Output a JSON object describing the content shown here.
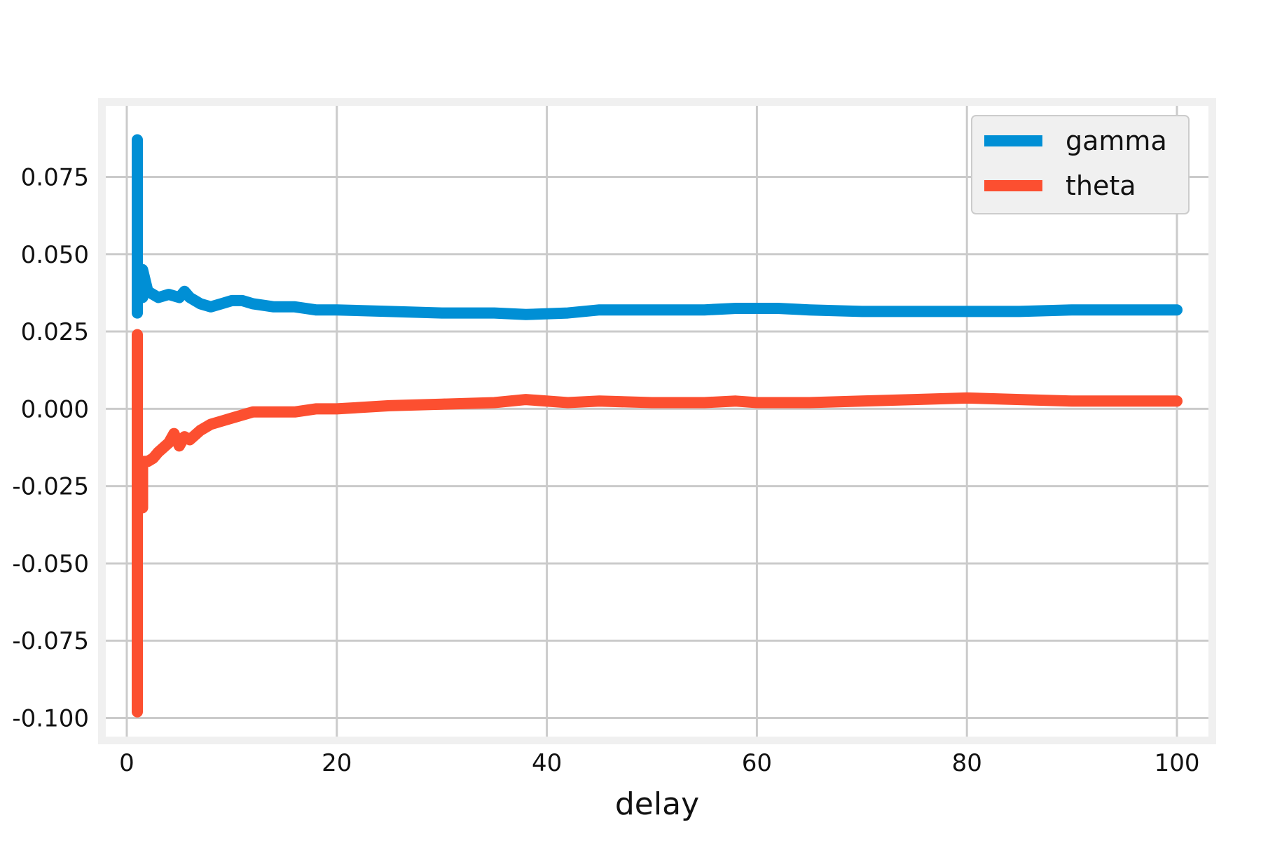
{
  "chart_data": {
    "type": "line",
    "title": "",
    "xlabel": "delay",
    "ylabel": "",
    "xlim": [
      -2,
      103
    ],
    "ylim": [
      -0.106,
      0.098
    ],
    "grid": true,
    "legend_position": "top-right",
    "x_ticks": [
      0,
      20,
      40,
      60,
      80,
      100
    ],
    "x_tick_labels": [
      "0",
      "20",
      "40",
      "60",
      "80",
      "100"
    ],
    "y_ticks": [
      0.075,
      0.05,
      0.025,
      0.0,
      -0.025,
      -0.05,
      -0.075,
      -0.1
    ],
    "y_tick_labels": [
      "0.075",
      "0.050",
      "0.025",
      "0.000",
      "-0.025",
      "-0.050",
      "-0.075",
      "-0.100"
    ],
    "series": [
      {
        "name": "gamma",
        "color": "#008fd5",
        "x": [
          1,
          1,
          1,
          1.5,
          1.5,
          2,
          2.5,
          3,
          4,
          5,
          5.5,
          6,
          7,
          8,
          9,
          10,
          11,
          12,
          14,
          16,
          18,
          20,
          25,
          30,
          35,
          38,
          42,
          45,
          50,
          55,
          58,
          62,
          65,
          70,
          75,
          80,
          85,
          90,
          95,
          100
        ],
        "y": [
          0.087,
          0.031,
          0.046,
          0.036,
          0.045,
          0.038,
          0.037,
          0.036,
          0.037,
          0.036,
          0.038,
          0.036,
          0.034,
          0.033,
          0.034,
          0.035,
          0.035,
          0.034,
          0.033,
          0.033,
          0.032,
          0.032,
          0.0315,
          0.031,
          0.031,
          0.0305,
          0.031,
          0.032,
          0.032,
          0.032,
          0.0325,
          0.0325,
          0.032,
          0.0315,
          0.0315,
          0.0315,
          0.0315,
          0.032,
          0.032,
          0.032
        ]
      },
      {
        "name": "theta",
        "color": "#fc4f30",
        "x": [
          1,
          1,
          1,
          1.5,
          1.5,
          2,
          2.5,
          3,
          4,
          4.5,
          5,
          5.5,
          6,
          7,
          8,
          9,
          10,
          11,
          12,
          14,
          16,
          18,
          20,
          25,
          30,
          35,
          38,
          42,
          45,
          50,
          55,
          58,
          60,
          65,
          70,
          75,
          80,
          85,
          90,
          95,
          100
        ],
        "y": [
          0.024,
          -0.098,
          -0.02,
          -0.032,
          -0.017,
          -0.017,
          -0.016,
          -0.014,
          -0.011,
          -0.008,
          -0.012,
          -0.009,
          -0.01,
          -0.007,
          -0.005,
          -0.004,
          -0.003,
          -0.002,
          -0.001,
          -0.001,
          -0.001,
          0.0,
          0.0,
          0.001,
          0.0015,
          0.002,
          0.003,
          0.002,
          0.0025,
          0.002,
          0.002,
          0.0025,
          0.002,
          0.002,
          0.0025,
          0.003,
          0.0035,
          0.003,
          0.0025,
          0.0025,
          0.0025
        ]
      }
    ]
  }
}
